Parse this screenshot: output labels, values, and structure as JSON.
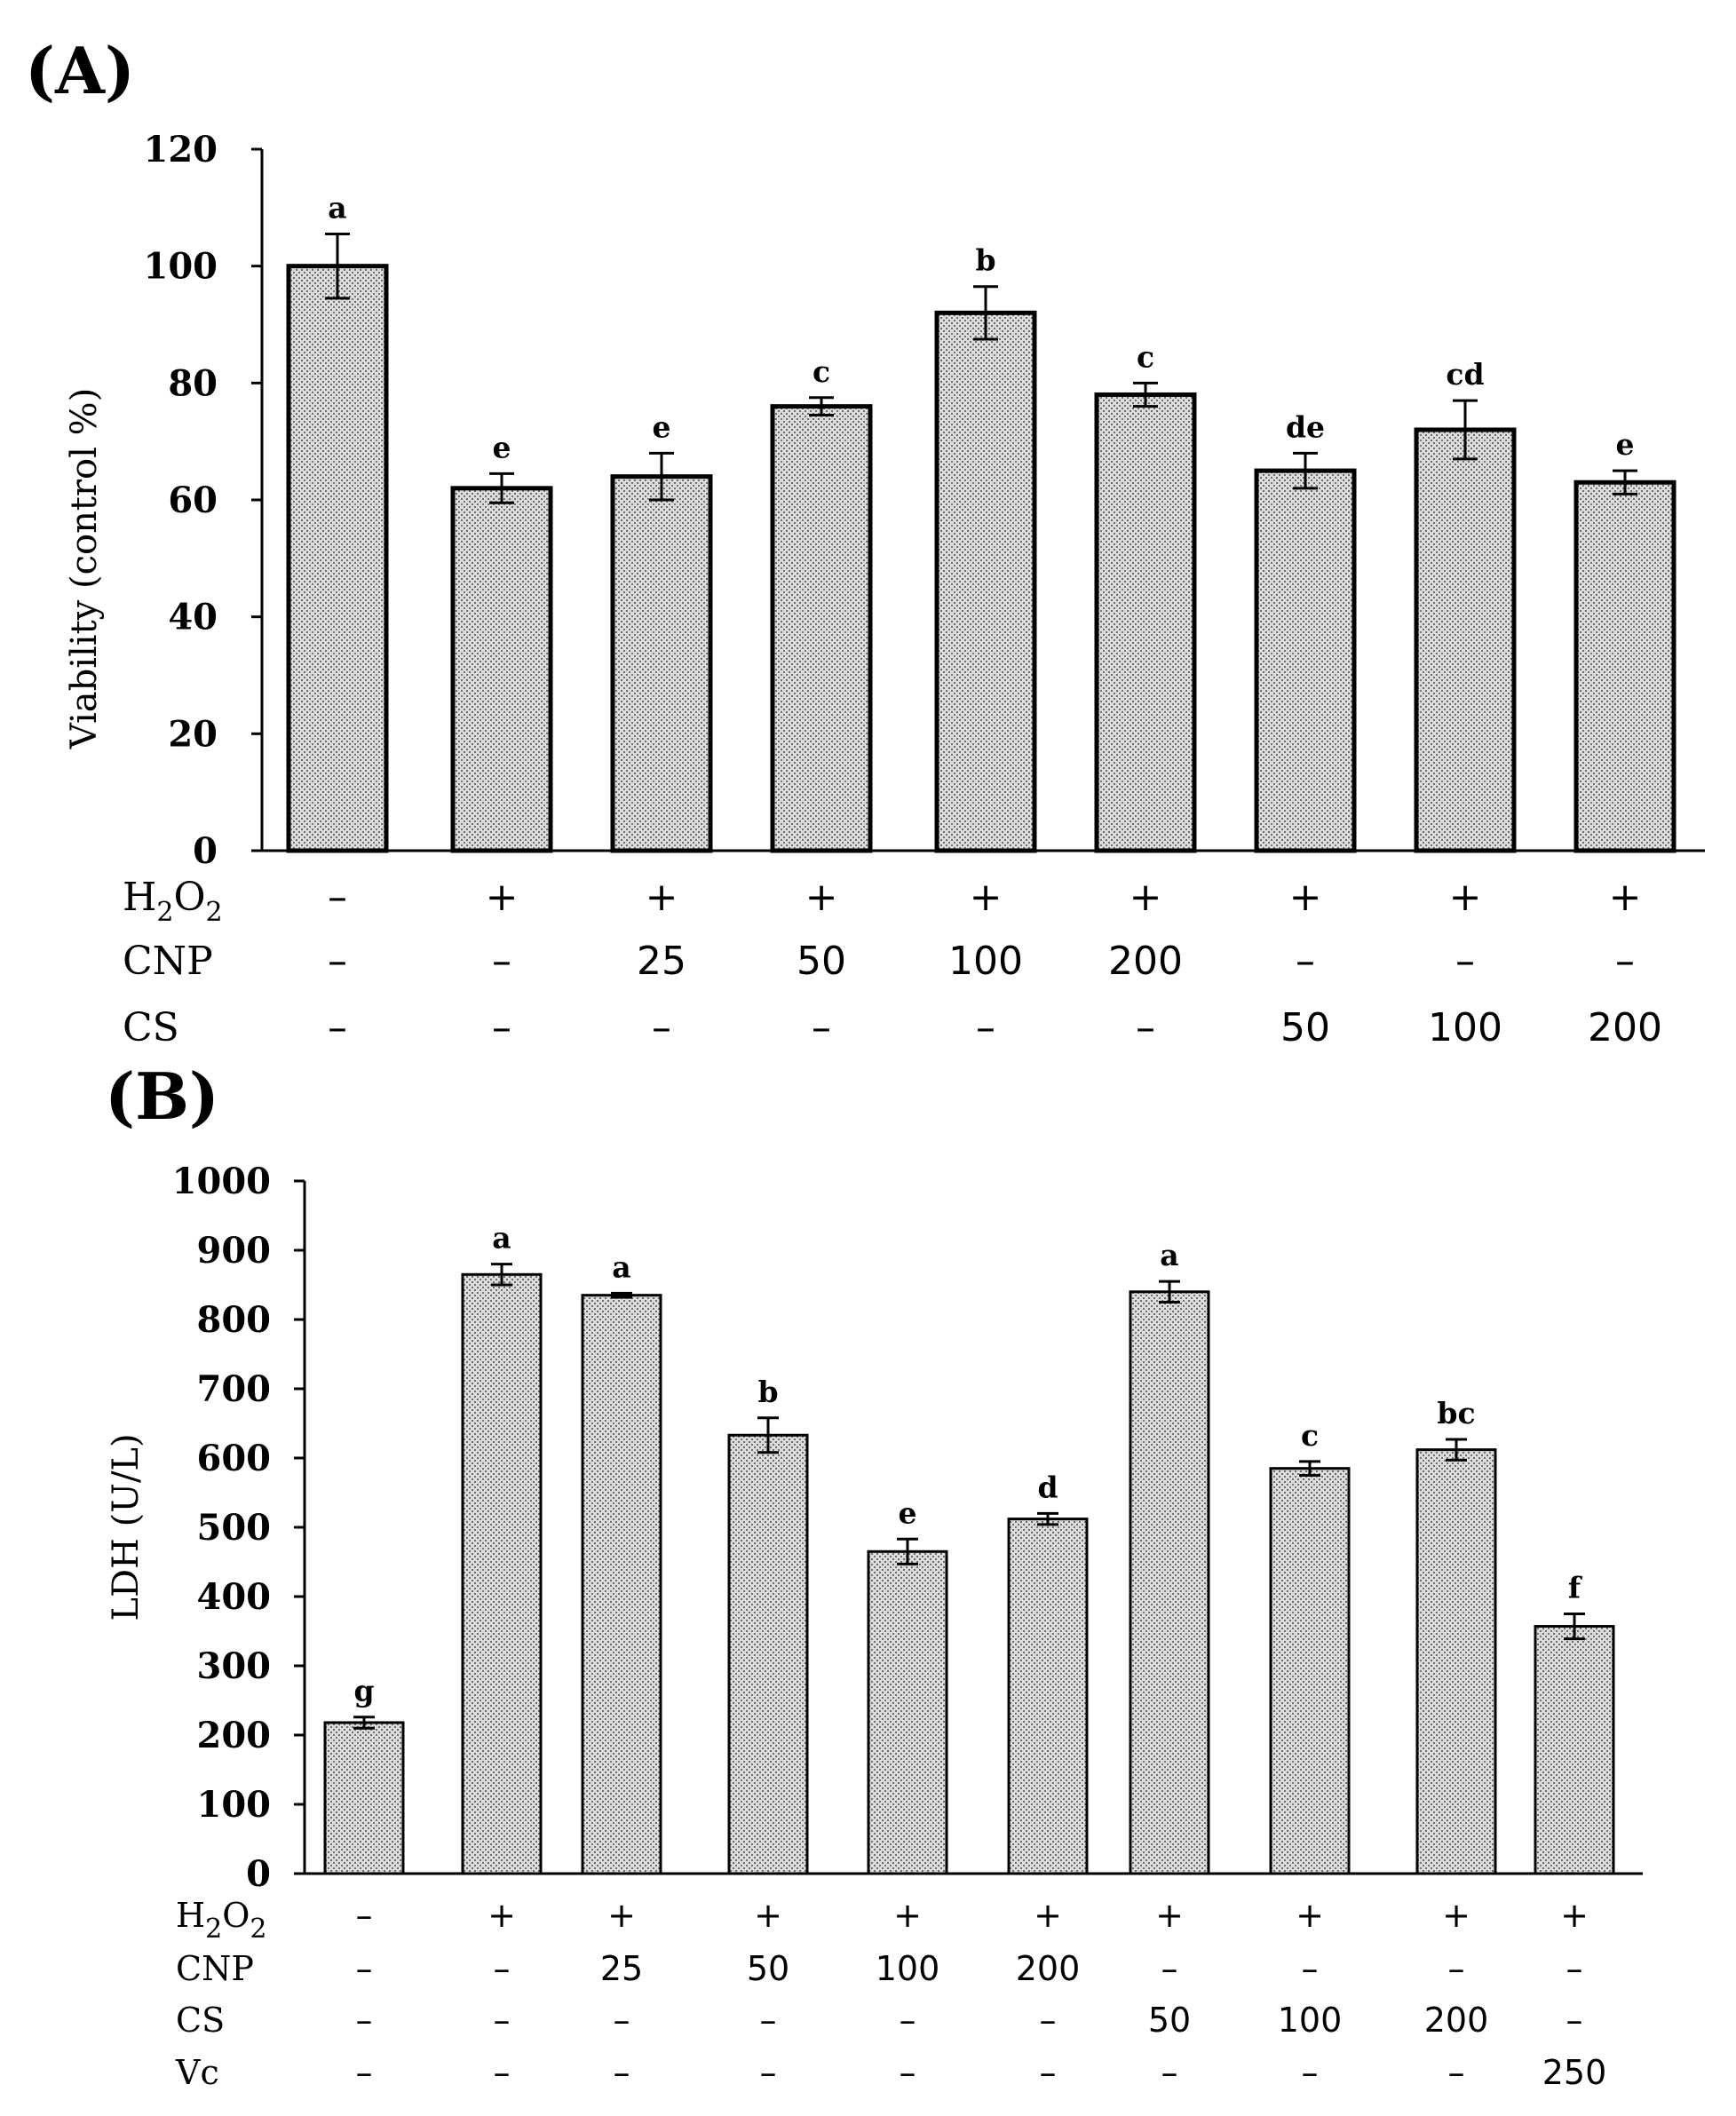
{
  "chart_data": [
    {
      "type": "bar",
      "panel_label": "(A)",
      "ylabel": "Viability (control %)",
      "ylim": [
        0,
        120
      ],
      "yticks": [
        "0",
        "20",
        "40",
        "60",
        "80",
        "100",
        "120"
      ],
      "values": [
        100,
        62,
        64,
        76,
        92,
        78,
        65,
        72,
        63
      ],
      "errors": [
        5.5,
        2.5,
        4,
        1.5,
        4.5,
        2,
        3,
        5,
        2
      ],
      "significance": [
        "a",
        "e",
        "e",
        "c",
        "b",
        "c",
        "de",
        "cd",
        "e"
      ],
      "treatments": [
        {
          "label_main": "H",
          "label_sub1": "2",
          "label_mid": "O",
          "label_sub2": "2",
          "values": [
            "–",
            "+",
            "+",
            "+",
            "+",
            "+",
            "+",
            "+",
            "+"
          ]
        },
        {
          "label": "CNP",
          "values": [
            "–",
            "–",
            "25",
            "50",
            "100",
            "200",
            "–",
            "–",
            "–"
          ]
        },
        {
          "label": "CS",
          "values": [
            "–",
            "–",
            "–",
            "–",
            "–",
            "–",
            "50",
            "100",
            "200"
          ]
        }
      ]
    },
    {
      "type": "bar",
      "panel_label": "(B)",
      "ylabel": "LDH (U/L)",
      "ylim": [
        0,
        1000
      ],
      "yticks": [
        "0",
        "100",
        "200",
        "300",
        "400",
        "500",
        "600",
        "700",
        "800",
        "900",
        "1000"
      ],
      "values": [
        218,
        865,
        835,
        633,
        465,
        512,
        840,
        585,
        612,
        357
      ],
      "errors": [
        8,
        15,
        3,
        25,
        18,
        8,
        15,
        10,
        15,
        18
      ],
      "significance": [
        "g",
        "a",
        "a",
        "b",
        "e",
        "d",
        "a",
        "c",
        "bc",
        "f"
      ],
      "treatments": [
        {
          "label_main": "H",
          "label_sub1": "2",
          "label_mid": "O",
          "label_sub2": "2",
          "values": [
            "–",
            "+",
            "+",
            "+",
            "+",
            "+",
            "+",
            "+",
            "+",
            "+"
          ]
        },
        {
          "label": "CNP",
          "values": [
            "–",
            "–",
            "25",
            "50",
            "100",
            "200",
            "–",
            "–",
            "–",
            "–"
          ]
        },
        {
          "label": "CS",
          "values": [
            "–",
            "–",
            "–",
            "–",
            "–",
            "–",
            "50",
            "100",
            "200",
            "–"
          ]
        },
        {
          "label": "Vc",
          "values": [
            "–",
            "–",
            "–",
            "–",
            "–",
            "–",
            "–",
            "–",
            "–",
            "250"
          ]
        }
      ]
    }
  ],
  "colors": {
    "bar_fill": "#cfcfcf",
    "bar_stroke": "#000000",
    "axis": "#000000"
  }
}
